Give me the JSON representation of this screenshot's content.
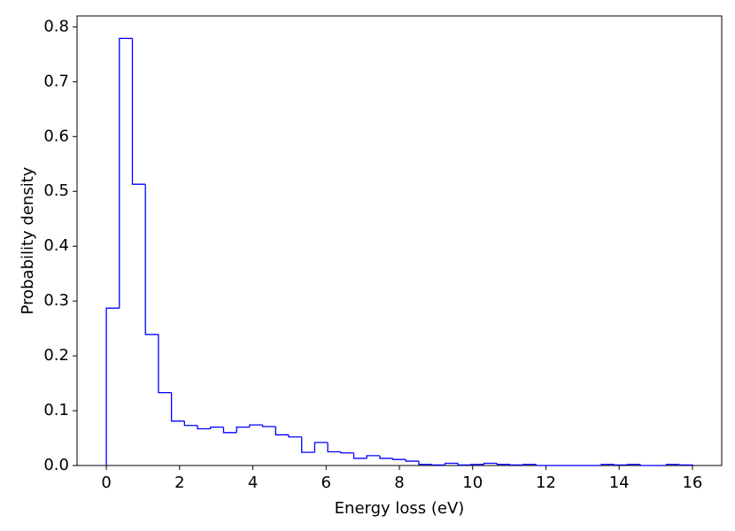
{
  "chart_data": {
    "type": "histogram",
    "x_label": "Energy loss (eV)",
    "y_label": "Probability density",
    "color": "#0000ff",
    "bins": [
      0,
      0.3556,
      0.7111,
      1.0667,
      1.4222,
      1.7778,
      2.1333,
      2.4889,
      2.8444,
      3.2,
      3.5556,
      3.9111,
      4.2667,
      4.6222,
      4.9778,
      5.3333,
      5.6889,
      6.0444,
      6.4,
      6.7556,
      7.1111,
      7.4667,
      7.8222,
      8.1778,
      8.5333,
      8.8889,
      9.2444,
      9.6,
      9.9556,
      10.3111,
      10.6667,
      11.0222,
      11.3778,
      11.7333,
      12.0889,
      12.4444,
      12.8,
      13.1556,
      13.5111,
      13.8667,
      14.2222,
      14.5778,
      14.9333,
      15.2889,
      15.6444,
      16
    ],
    "values": [
      0.287,
      0.779,
      0.513,
      0.239,
      0.133,
      0.081,
      0.073,
      0.067,
      0.07,
      0.06,
      0.07,
      0.074,
      0.071,
      0.056,
      0.052,
      0.024,
      0.042,
      0.025,
      0.023,
      0.013,
      0.018,
      0.013,
      0.011,
      0.008,
      0.002,
      0.001,
      0.004,
      0.001,
      0.002,
      0.004,
      0.002,
      0.001,
      0.002,
      0,
      0,
      0,
      0,
      0,
      0.002,
      0.001,
      0.002,
      0,
      0,
      0.002,
      0.001
    ],
    "xlim": [
      -0.8,
      16.8
    ],
    "ylim": [
      0,
      0.82
    ],
    "xticks": [
      0,
      2,
      4,
      6,
      8,
      10,
      12,
      14,
      16
    ],
    "yticks": [
      {
        "value": 0,
        "label": "0.0"
      },
      0.1,
      0.2,
      0.3,
      0.4,
      0.5,
      0.6,
      0.7,
      0.8
    ]
  }
}
